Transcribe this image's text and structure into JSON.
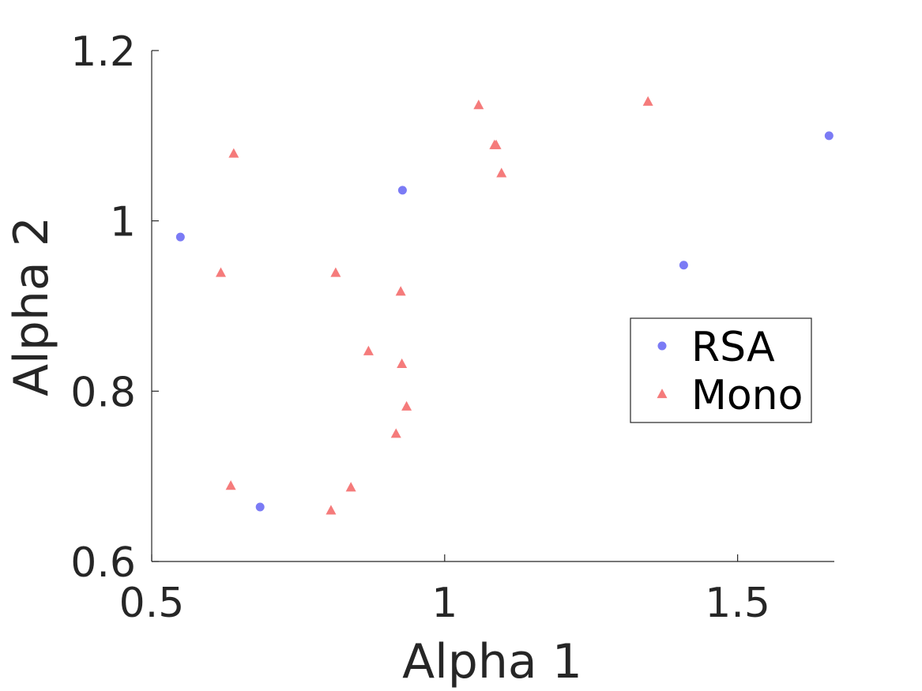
{
  "chart_data": {
    "type": "scatter",
    "title": "",
    "xlabel": "Alpha 1",
    "ylabel": "Alpha 2",
    "xlim": [
      0.5,
      1.665
    ],
    "ylim": [
      0.6,
      1.2
    ],
    "xticks": [
      {
        "value": 0.5,
        "label": "0.5"
      },
      {
        "value": 1,
        "label": "1"
      },
      {
        "value": 1.5,
        "label": "1.5"
      }
    ],
    "yticks": [
      {
        "value": 0.6,
        "label": "0.6"
      },
      {
        "value": 0.8,
        "label": "0.8"
      },
      {
        "value": 1,
        "label": "1"
      },
      {
        "value": 1.2,
        "label": "1.2"
      }
    ],
    "grid": false,
    "legend_position": "right",
    "series": [
      {
        "name": "RSA",
        "label": "RSA",
        "marker": "circle",
        "color": "#7b7bf5",
        "points": [
          {
            "x": 0.549,
            "y": 0.981
          },
          {
            "x": 0.685,
            "y": 0.664
          },
          {
            "x": 0.928,
            "y": 1.036
          },
          {
            "x": 1.408,
            "y": 0.948
          },
          {
            "x": 1.656,
            "y": 1.1
          }
        ]
      },
      {
        "name": "Mono",
        "label": "Mono",
        "marker": "triangle",
        "color": "#f57b7b",
        "points": [
          {
            "x": 0.64,
            "y": 1.079
          },
          {
            "x": 0.618,
            "y": 0.939
          },
          {
            "x": 0.635,
            "y": 0.689
          },
          {
            "x": 0.806,
            "y": 0.66
          },
          {
            "x": 0.814,
            "y": 0.939
          },
          {
            "x": 0.84,
            "y": 0.687
          },
          {
            "x": 0.87,
            "y": 0.847
          },
          {
            "x": 0.917,
            "y": 0.75
          },
          {
            "x": 0.925,
            "y": 0.917
          },
          {
            "x": 0.927,
            "y": 0.832
          },
          {
            "x": 0.935,
            "y": 0.782
          },
          {
            "x": 1.058,
            "y": 1.136
          },
          {
            "x": 1.085,
            "y": 1.089
          },
          {
            "x": 1.088,
            "y": 1.089
          },
          {
            "x": 1.097,
            "y": 1.056
          },
          {
            "x": 1.347,
            "y": 1.14
          }
        ]
      }
    ]
  }
}
